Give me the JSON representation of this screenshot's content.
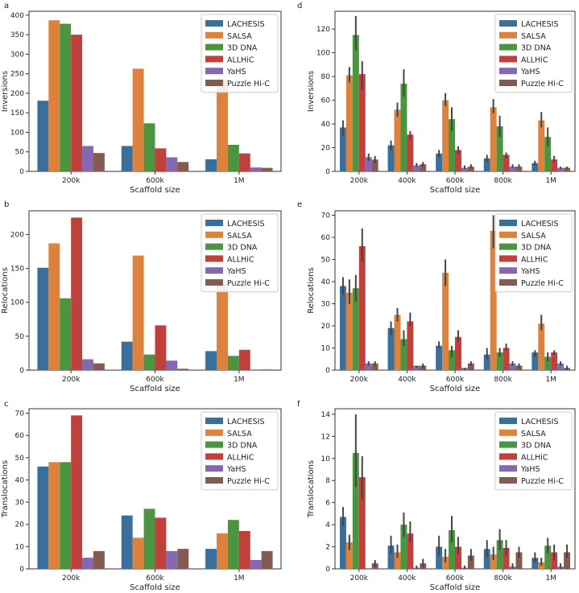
{
  "figure": {
    "colors": {
      "LACHESIS": "#3a6f9c",
      "SALSA": "#dd823c",
      "3D  DNA": "#4b9541",
      "ALLHiC": "#c0403b",
      "YaHS": "#8468b2",
      "Puzzle  Hi-C": "#845b53",
      "error_bar": "#444444",
      "axis": "#333333"
    }
  },
  "chart_data": [
    {
      "panel": "a",
      "type": "bar",
      "error_bars": false,
      "xlabel": "Scaffold size",
      "ylabel": "Inversions",
      "ylim": [
        0,
        410
      ],
      "yticks": [
        0,
        50,
        100,
        150,
        200,
        250,
        300,
        350,
        400
      ],
      "categories": [
        "200k",
        "600k",
        "1M"
      ],
      "legend": "top-right",
      "series": [
        {
          "name": "LACHESIS",
          "values": [
            181,
            65,
            31
          ]
        },
        {
          "name": "SALSA",
          "values": [
            387,
            263,
            235
          ]
        },
        {
          "name": "3D  DNA",
          "values": [
            378,
            123,
            68
          ]
        },
        {
          "name": "ALLHiC",
          "values": [
            350,
            59,
            46
          ]
        },
        {
          "name": "YaHS",
          "values": [
            65,
            36,
            10
          ]
        },
        {
          "name": "Puzzle  Hi-C",
          "values": [
            47,
            24,
            9
          ]
        }
      ]
    },
    {
      "panel": "b",
      "type": "bar",
      "error_bars": false,
      "xlabel": "Scaffold size",
      "ylabel": "Relocations",
      "ylim": [
        0,
        235
      ],
      "yticks": [
        0,
        50,
        100,
        150,
        200
      ],
      "categories": [
        "200k",
        "600k",
        "1M"
      ],
      "legend": "top-right",
      "series": [
        {
          "name": "LACHESIS",
          "values": [
            151,
            42,
            28
          ]
        },
        {
          "name": "SALSA",
          "values": [
            187,
            169,
            128
          ]
        },
        {
          "name": "3D  DNA",
          "values": [
            106,
            23,
            21
          ]
        },
        {
          "name": "ALLHiC",
          "values": [
            225,
            66,
            30
          ]
        },
        {
          "name": "YaHS",
          "values": [
            16,
            14,
            0
          ]
        },
        {
          "name": "Puzzle  Hi-C",
          "values": [
            10,
            2,
            1
          ]
        }
      ]
    },
    {
      "panel": "c",
      "type": "bar",
      "error_bars": false,
      "xlabel": "Scaffold size",
      "ylabel": "Translocations",
      "ylim": [
        0,
        72
      ],
      "yticks": [
        0,
        10,
        20,
        30,
        40,
        50,
        60,
        70
      ],
      "categories": [
        "200k",
        "600k",
        "1M"
      ],
      "legend": "top-right",
      "series": [
        {
          "name": "LACHESIS",
          "values": [
            46,
            24,
            9
          ]
        },
        {
          "name": "SALSA",
          "values": [
            48,
            14,
            16
          ]
        },
        {
          "name": "3D  DNA",
          "values": [
            48,
            27,
            22
          ]
        },
        {
          "name": "ALLHiC",
          "values": [
            69,
            23,
            17
          ]
        },
        {
          "name": "YaHS",
          "values": [
            5,
            8,
            4
          ]
        },
        {
          "name": "Puzzle  Hi-C",
          "values": [
            8,
            9,
            8
          ]
        }
      ]
    },
    {
      "panel": "d",
      "type": "bar",
      "error_bars": true,
      "xlabel": "Scaffold size",
      "ylabel": "Inversions",
      "ylim": [
        0,
        135
      ],
      "yticks": [
        0,
        20,
        40,
        60,
        80,
        100,
        120
      ],
      "categories": [
        "200k",
        "400k",
        "600k",
        "800k",
        "1M"
      ],
      "legend": "top-right",
      "series": [
        {
          "name": "LACHESIS",
          "values": [
            37,
            22,
            15,
            11,
            7
          ],
          "err": [
            [
              30,
              43
            ],
            [
              18,
              26
            ],
            [
              12,
              18
            ],
            [
              8,
              14
            ],
            [
              5,
              9
            ]
          ]
        },
        {
          "name": "SALSA",
          "values": [
            81,
            52,
            60,
            54,
            43
          ],
          "err": [
            [
              75,
              88
            ],
            [
              46,
              58
            ],
            [
              55,
              66
            ],
            [
              49,
              61
            ],
            [
              37,
              50
            ]
          ]
        },
        {
          "name": "3D  DNA",
          "values": [
            115,
            74,
            44,
            38,
            29
          ],
          "err": [
            [
              102,
              131
            ],
            [
              63,
              86
            ],
            [
              34,
              54
            ],
            [
              29,
              47
            ],
            [
              21,
              37
            ]
          ]
        },
        {
          "name": "ALLHiC",
          "values": [
            82,
            31,
            18,
            14,
            10
          ],
          "err": [
            [
              69,
              93
            ],
            [
              27,
              34
            ],
            [
              15,
              21
            ],
            [
              11,
              16
            ],
            [
              8,
              13
            ]
          ]
        },
        {
          "name": "YaHS",
          "values": [
            12,
            5,
            3,
            4,
            3
          ],
          "err": [
            [
              9,
              15
            ],
            [
              4,
              7
            ],
            [
              2,
              5
            ],
            [
              3,
              6
            ],
            [
              2,
              4
            ]
          ]
        },
        {
          "name": "Puzzle  Hi-C",
          "values": [
            10,
            6,
            4,
            4,
            3
          ],
          "err": [
            [
              7,
              13
            ],
            [
              4,
              8
            ],
            [
              3,
              6
            ],
            [
              3,
              6
            ],
            [
              2,
              4
            ]
          ]
        }
      ]
    },
    {
      "panel": "e",
      "type": "bar",
      "error_bars": true,
      "xlabel": "Scaffold size",
      "ylabel": "Relocations",
      "ylim": [
        0,
        72
      ],
      "yticks": [
        0,
        10,
        20,
        30,
        40,
        50,
        60,
        70
      ],
      "categories": [
        "200k",
        "400k",
        "600k",
        "800k",
        "1M"
      ],
      "legend": "top-right",
      "series": [
        {
          "name": "LACHESIS",
          "values": [
            38,
            19,
            11,
            7,
            8
          ],
          "err": [
            [
              34,
              42
            ],
            [
              16,
              22
            ],
            [
              10,
              13
            ],
            [
              5,
              10
            ],
            [
              6,
              9
            ]
          ]
        },
        {
          "name": "SALSA",
          "values": [
            35,
            25,
            44,
            63,
            21
          ],
          "err": [
            [
              30,
              41
            ],
            [
              22,
              28
            ],
            [
              38,
              50
            ],
            [
              55,
              70
            ],
            [
              18,
              25
            ]
          ]
        },
        {
          "name": "3D  DNA",
          "values": [
            37,
            14,
            9,
            8,
            6
          ],
          "err": [
            [
              31,
              43
            ],
            [
              11,
              18
            ],
            [
              6,
              11
            ],
            [
              6,
              10
            ],
            [
              4,
              8
            ]
          ]
        },
        {
          "name": "ALLHiC",
          "values": [
            56,
            22,
            15,
            10,
            8
          ],
          "err": [
            [
              49,
              64
            ],
            [
              20,
              26
            ],
            [
              13,
              18
            ],
            [
              9,
              12
            ],
            [
              7,
              9
            ]
          ]
        },
        {
          "name": "YaHS",
          "values": [
            3,
            2,
            1,
            3,
            3
          ],
          "err": [
            [
              2,
              4
            ],
            [
              1,
              2
            ],
            [
              0,
              1
            ],
            [
              2,
              4
            ],
            [
              2,
              4
            ]
          ]
        },
        {
          "name": "Puzzle  Hi-C",
          "values": [
            3,
            2,
            3,
            2,
            1
          ],
          "err": [
            [
              2,
              4
            ],
            [
              1,
              3
            ],
            [
              2,
              4
            ],
            [
              1,
              3
            ],
            [
              0,
              2
            ]
          ]
        }
      ]
    },
    {
      "panel": "f",
      "type": "bar",
      "error_bars": true,
      "xlabel": "Scaffold size",
      "ylabel": "Translocations",
      "ylim": [
        0,
        14.5
      ],
      "yticks": [
        0,
        2,
        4,
        6,
        8,
        10,
        12,
        14
      ],
      "categories": [
        "200k",
        "400k",
        "600k",
        "800k",
        "1M"
      ],
      "legend": "top-right",
      "series": [
        {
          "name": "LACHESIS",
          "values": [
            4.7,
            2.1,
            2.0,
            1.8,
            1.0
          ],
          "err": [
            [
              3.9,
              5.6
            ],
            [
              1.4,
              3.0
            ],
            [
              1.2,
              3.0
            ],
            [
              1.1,
              2.6
            ],
            [
              0.6,
              1.5
            ]
          ]
        },
        {
          "name": "SALSA",
          "values": [
            2.4,
            1.5,
            1.1,
            1.3,
            0.6
          ],
          "err": [
            [
              1.7,
              3.1
            ],
            [
              1.0,
              2.2
            ],
            [
              0.6,
              1.8
            ],
            [
              0.8,
              2.0
            ],
            [
              0.3,
              1.0
            ]
          ]
        },
        {
          "name": "3D  DNA",
          "values": [
            10.5,
            4.0,
            3.5,
            2.6,
            2.1
          ],
          "err": [
            [
              7.4,
              14.0
            ],
            [
              2.9,
              5.1
            ],
            [
              2.4,
              4.8
            ],
            [
              1.7,
              3.6
            ],
            [
              1.4,
              2.8
            ]
          ]
        },
        {
          "name": "ALLHiC",
          "values": [
            8.3,
            3.2,
            2.0,
            1.9,
            1.5
          ],
          "err": [
            [
              6.3,
              10.2
            ],
            [
              2.4,
              4.3
            ],
            [
              1.3,
              2.9
            ],
            [
              1.2,
              2.6
            ],
            [
              0.8,
              2.2
            ]
          ]
        },
        {
          "name": "YaHS",
          "values": [
            0.0,
            0.1,
            0.1,
            0.2,
            0.2
          ],
          "err": [
            [
              0.0,
              0.0
            ],
            [
              0.0,
              0.3
            ],
            [
              0.0,
              0.3
            ],
            [
              0.0,
              0.5
            ],
            [
              0.0,
              0.5
            ]
          ]
        },
        {
          "name": "Puzzle  Hi-C",
          "values": [
            0.5,
            0.5,
            1.2,
            1.5,
            1.5
          ],
          "err": [
            [
              0.2,
              0.8
            ],
            [
              0.2,
              0.9
            ],
            [
              0.7,
              1.8
            ],
            [
              1.0,
              2.0
            ],
            [
              1.0,
              2.2
            ]
          ]
        }
      ]
    }
  ]
}
